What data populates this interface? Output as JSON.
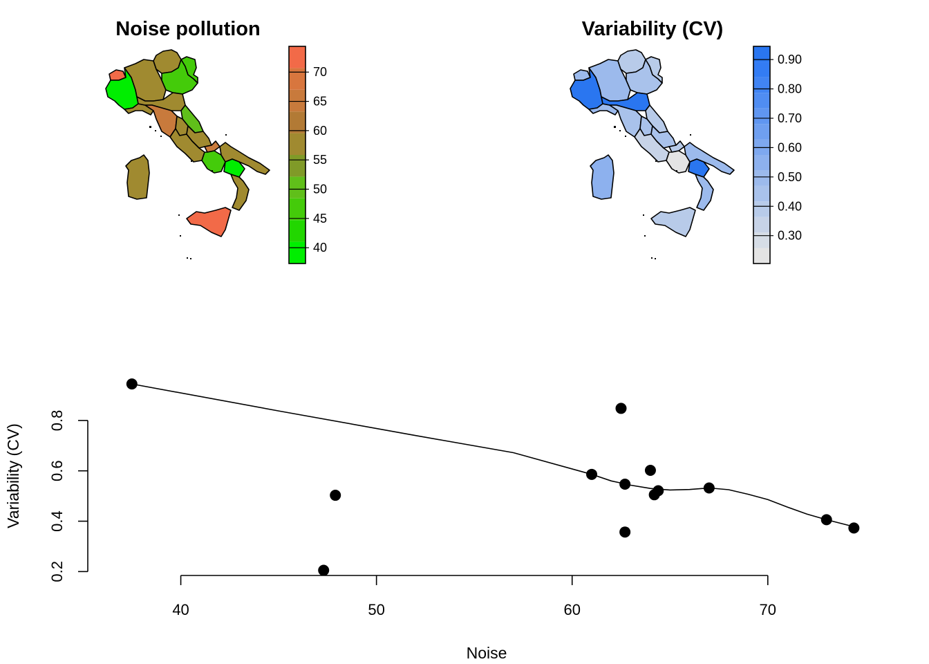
{
  "chart_data": [
    {
      "type": "map",
      "title": "Noise pollution",
      "legend": {
        "colors": [
          "#00ee00",
          "#22d600",
          "#44cb0a",
          "#60bf1a",
          "#809a28",
          "#a08a30",
          "#b27a35",
          "#c87a3c",
          "#d8763e",
          "#f26a48"
        ],
        "tick_labels": [
          "40",
          "45",
          "50",
          "55",
          "60",
          "65",
          "70"
        ],
        "tick_values": [
          40,
          45,
          50,
          55,
          60,
          65,
          70
        ],
        "range": [
          37.3,
          74.4
        ]
      },
      "region_colors": {
        "valle_daosta": "#f26a48",
        "piemonte": "#00ee00",
        "lombardia": "#a08a30",
        "trentino": "#a08a30",
        "veneto": "#44cb0a",
        "friuli": "#44cb0a",
        "liguria": "#a08a30",
        "emilia": "#a08a30",
        "toscana": "#c87a3c",
        "umbria": "#a08a30",
        "marche": "#60bf1a",
        "lazio": "#a08a30",
        "abruzzo": "#a08a30",
        "molise": "#c87a3c",
        "campania": "#44cb0a",
        "puglia": "#a08a30",
        "basilicata": "#00ee00",
        "calabria": "#a08a30",
        "sicilia": "#f26a48",
        "sardegna": "#a08a30"
      }
    },
    {
      "type": "map",
      "title": "Variability (CV)",
      "legend": {
        "colors": [
          "#e4e4e4",
          "#d6dde6",
          "#c7d3e7",
          "#b8cbe9",
          "#a9c2eb",
          "#9cbaec",
          "#8db1ee",
          "#7ea8ef",
          "#6f9ff0",
          "#6096f1",
          "#508df2",
          "#4184f3",
          "#337cf4",
          "#2a76f0"
        ],
        "tick_labels": [
          "0.30",
          "0.40",
          "0.50",
          "0.60",
          "0.70",
          "0.80",
          "0.90"
        ],
        "tick_values": [
          0.3,
          0.4,
          0.5,
          0.6,
          0.7,
          0.8,
          0.9
        ],
        "range": [
          0.205,
          0.945
        ]
      },
      "region_colors": {
        "valle_daosta": "#9cbaec",
        "piemonte": "#2a76f0",
        "lombardia": "#9cbaec",
        "trentino": "#b8cbe9",
        "veneto": "#a9c2eb",
        "friuli": "#b8cbe9",
        "liguria": "#9cbaec",
        "emilia": "#2a76f0",
        "toscana": "#a9c2eb",
        "umbria": "#a9c2eb",
        "marche": "#b8cbe9",
        "lazio": "#c7d3e7",
        "abruzzo": "#a9c2eb",
        "molise": "#b8cbe9",
        "campania": "#e4e4e4",
        "puglia": "#9cbaec",
        "basilicata": "#2a76f0",
        "calabria": "#9cbaec",
        "sicilia": "#b8cbe9",
        "sardegna": "#8db1ee"
      }
    },
    {
      "type": "scatter",
      "xlabel": "Noise",
      "ylabel": "Variability (CV)",
      "xlim": [
        36.2,
        75.2
      ],
      "ylim": [
        0.19,
        0.97
      ],
      "xticks": [
        40,
        50,
        60,
        70
      ],
      "yticks": [
        0.2,
        0.4,
        0.6,
        0.8
      ],
      "points": [
        {
          "x": 37.5,
          "y": 0.945
        },
        {
          "x": 47.3,
          "y": 0.205
        },
        {
          "x": 47.9,
          "y": 0.503
        },
        {
          "x": 61.0,
          "y": 0.586
        },
        {
          "x": 62.5,
          "y": 0.848
        },
        {
          "x": 62.7,
          "y": 0.547
        },
        {
          "x": 62.7,
          "y": 0.357
        },
        {
          "x": 64.0,
          "y": 0.602
        },
        {
          "x": 64.2,
          "y": 0.505
        },
        {
          "x": 64.4,
          "y": 0.521
        },
        {
          "x": 67.0,
          "y": 0.532
        },
        {
          "x": 73.0,
          "y": 0.406
        },
        {
          "x": 74.4,
          "y": 0.373
        }
      ],
      "smooth_line": [
        {
          "x": 37.5,
          "y": 0.945
        },
        {
          "x": 45.0,
          "y": 0.838
        },
        {
          "x": 52.0,
          "y": 0.74
        },
        {
          "x": 57.0,
          "y": 0.672
        },
        {
          "x": 61.0,
          "y": 0.586
        },
        {
          "x": 62.0,
          "y": 0.56
        },
        {
          "x": 63.0,
          "y": 0.543
        },
        {
          "x": 64.0,
          "y": 0.53
        },
        {
          "x": 65.0,
          "y": 0.524
        },
        {
          "x": 66.0,
          "y": 0.526
        },
        {
          "x": 67.0,
          "y": 0.532
        },
        {
          "x": 68.0,
          "y": 0.525
        },
        {
          "x": 69.0,
          "y": 0.507
        },
        {
          "x": 70.0,
          "y": 0.486
        },
        {
          "x": 71.0,
          "y": 0.456
        },
        {
          "x": 72.0,
          "y": 0.428
        },
        {
          "x": 73.0,
          "y": 0.406
        },
        {
          "x": 74.4,
          "y": 0.378
        }
      ]
    }
  ]
}
